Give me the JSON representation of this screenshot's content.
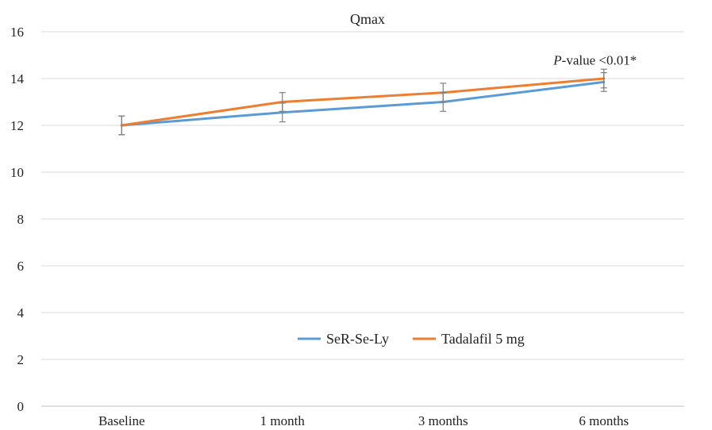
{
  "chart_data": {
    "type": "line",
    "title": "Qmax",
    "xlabel": "",
    "ylabel": "",
    "categories": [
      "Baseline",
      "1 month",
      "3 months",
      "6 months"
    ],
    "ylim": [
      0,
      16
    ],
    "yticks": [
      0,
      2,
      4,
      6,
      8,
      10,
      12,
      14,
      16
    ],
    "grid": true,
    "legend_position": "bottom-center",
    "series": [
      {
        "name": "SeR-Se-Ly",
        "color": "#5b9bd5",
        "values": [
          12.0,
          12.55,
          13.0,
          13.85
        ],
        "error": [
          0.4,
          0.4,
          0.4,
          0.4
        ]
      },
      {
        "name": "Tadalafil 5 mg",
        "color": "#ed7d31",
        "values": [
          12.0,
          13.0,
          13.4,
          14.0
        ],
        "error": [
          0.4,
          0.4,
          0.4,
          0.4
        ]
      }
    ],
    "annotations": [
      {
        "category": "6 months",
        "y": 14.8,
        "italic": "P",
        "text": "-value <0.01*"
      }
    ]
  }
}
